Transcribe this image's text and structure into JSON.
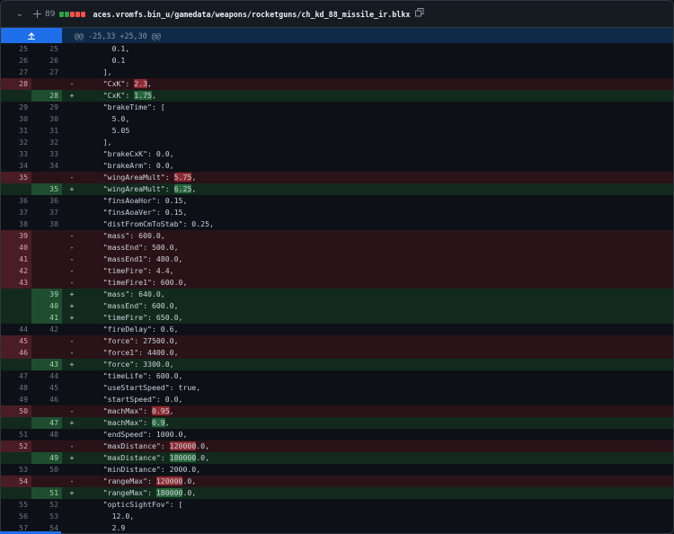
{
  "file_header": {
    "changes_count": "89",
    "diffstat_colors": [
      "#2ea043",
      "#2ea043",
      "#f85149",
      "#f85149",
      "#f85149"
    ],
    "file_path": "aces.vromfs.bin_u/gamedata/weapons/rocketguns/ch_kd_88_missile_ir.blkx"
  },
  "hunk": {
    "header": "@@ -25,33 +25,30 @@"
  },
  "rows": [
    {
      "type": "ctx",
      "old": "25",
      "new": "25",
      "sign": "",
      "pre": "      0.1,",
      "hl": "",
      "post": ""
    },
    {
      "type": "ctx",
      "old": "26",
      "new": "26",
      "sign": "",
      "pre": "      0.1",
      "hl": "",
      "post": ""
    },
    {
      "type": "ctx",
      "old": "27",
      "new": "27",
      "sign": "",
      "pre": "    ],",
      "hl": "",
      "post": ""
    },
    {
      "type": "del",
      "old": "28",
      "new": "",
      "sign": "-",
      "pre": "    \"CxK\": ",
      "hl": "2.3",
      "post": ","
    },
    {
      "type": "add",
      "old": "",
      "new": "28",
      "sign": "+",
      "pre": "    \"CxK\": ",
      "hl": "1.75",
      "post": ","
    },
    {
      "type": "ctx",
      "old": "29",
      "new": "29",
      "sign": "",
      "pre": "    \"brakeTime\": [",
      "hl": "",
      "post": ""
    },
    {
      "type": "ctx",
      "old": "30",
      "new": "30",
      "sign": "",
      "pre": "      5.0,",
      "hl": "",
      "post": ""
    },
    {
      "type": "ctx",
      "old": "31",
      "new": "31",
      "sign": "",
      "pre": "      5.05",
      "hl": "",
      "post": ""
    },
    {
      "type": "ctx",
      "old": "32",
      "new": "32",
      "sign": "",
      "pre": "    ],",
      "hl": "",
      "post": ""
    },
    {
      "type": "ctx",
      "old": "33",
      "new": "33",
      "sign": "",
      "pre": "    \"brakeCxK\": 0.0,",
      "hl": "",
      "post": ""
    },
    {
      "type": "ctx",
      "old": "34",
      "new": "34",
      "sign": "",
      "pre": "    \"brakeArm\": 0.0,",
      "hl": "",
      "post": ""
    },
    {
      "type": "del",
      "old": "35",
      "new": "",
      "sign": "-",
      "pre": "    \"wingAreaMult\": ",
      "hl": "5.75",
      "post": ","
    },
    {
      "type": "add",
      "old": "",
      "new": "35",
      "sign": "+",
      "pre": "    \"wingAreaMult\": ",
      "hl": "6.25",
      "post": ","
    },
    {
      "type": "ctx",
      "old": "36",
      "new": "36",
      "sign": "",
      "pre": "    \"finsAoaHor\": 0.15,",
      "hl": "",
      "post": ""
    },
    {
      "type": "ctx",
      "old": "37",
      "new": "37",
      "sign": "",
      "pre": "    \"finsAoaVer\": 0.15,",
      "hl": "",
      "post": ""
    },
    {
      "type": "ctx",
      "old": "38",
      "new": "38",
      "sign": "",
      "pre": "    \"distFromCmToStab\": 0.25,",
      "hl": "",
      "post": ""
    },
    {
      "type": "del",
      "old": "39",
      "new": "",
      "sign": "-",
      "pre": "    \"mass\": 600.0,",
      "hl": "",
      "post": ""
    },
    {
      "type": "del",
      "old": "40",
      "new": "",
      "sign": "-",
      "pre": "    \"massEnd\": 500.0,",
      "hl": "",
      "post": ""
    },
    {
      "type": "del",
      "old": "41",
      "new": "",
      "sign": "-",
      "pre": "    \"massEnd1\": 480.0,",
      "hl": "",
      "post": ""
    },
    {
      "type": "del",
      "old": "42",
      "new": "",
      "sign": "-",
      "pre": "    \"timeFire\": 4.4,",
      "hl": "",
      "post": ""
    },
    {
      "type": "del",
      "old": "43",
      "new": "",
      "sign": "-",
      "pre": "    \"timeFire1\": 600.0,",
      "hl": "",
      "post": ""
    },
    {
      "type": "add",
      "old": "",
      "new": "39",
      "sign": "+",
      "pre": "    \"mass\": 640.0,",
      "hl": "",
      "post": ""
    },
    {
      "type": "add",
      "old": "",
      "new": "40",
      "sign": "+",
      "pre": "    \"massEnd\": 600.0,",
      "hl": "",
      "post": ""
    },
    {
      "type": "add",
      "old": "",
      "new": "41",
      "sign": "+",
      "pre": "    \"timeFire\": 650.0,",
      "hl": "",
      "post": ""
    },
    {
      "type": "ctx",
      "old": "44",
      "new": "42",
      "sign": "",
      "pre": "    \"fireDelay\": 0.6,",
      "hl": "",
      "post": ""
    },
    {
      "type": "del",
      "old": "45",
      "new": "",
      "sign": "-",
      "pre": "    \"force\": 27500.0,",
      "hl": "",
      "post": ""
    },
    {
      "type": "del",
      "old": "46",
      "new": "",
      "sign": "-",
      "pre": "    \"force1\": 4400.0,",
      "hl": "",
      "post": ""
    },
    {
      "type": "add",
      "old": "",
      "new": "43",
      "sign": "+",
      "pre": "    \"force\": 3300.0,",
      "hl": "",
      "post": ""
    },
    {
      "type": "ctx",
      "old": "47",
      "new": "44",
      "sign": "",
      "pre": "    \"timeLife\": 600.0,",
      "hl": "",
      "post": ""
    },
    {
      "type": "ctx",
      "old": "48",
      "new": "45",
      "sign": "",
      "pre": "    \"useStartSpeed\": true,",
      "hl": "",
      "post": ""
    },
    {
      "type": "ctx",
      "old": "49",
      "new": "46",
      "sign": "",
      "pre": "    \"startSpeed\": 0.0,",
      "hl": "",
      "post": ""
    },
    {
      "type": "del",
      "old": "50",
      "new": "",
      "sign": "-",
      "pre": "    \"machMax\": ",
      "hl": "0.95",
      "post": ","
    },
    {
      "type": "add",
      "old": "",
      "new": "47",
      "sign": "+",
      "pre": "    \"machMax\": ",
      "hl": "0.9",
      "post": ","
    },
    {
      "type": "ctx",
      "old": "51",
      "new": "48",
      "sign": "",
      "pre": "    \"endSpeed\": 1000.0,",
      "hl": "",
      "post": ""
    },
    {
      "type": "del",
      "old": "52",
      "new": "",
      "sign": "-",
      "pre": "    \"maxDistance\": ",
      "hl": "120000",
      "post": ".0,"
    },
    {
      "type": "add",
      "old": "",
      "new": "49",
      "sign": "+",
      "pre": "    \"maxDistance\": ",
      "hl": "180000",
      "post": ".0,"
    },
    {
      "type": "ctx",
      "old": "53",
      "new": "50",
      "sign": "",
      "pre": "    \"minDistance\": 2000.0,",
      "hl": "",
      "post": ""
    },
    {
      "type": "del",
      "old": "54",
      "new": "",
      "sign": "-",
      "pre": "    \"rangeMax\": ",
      "hl": "120000",
      "post": ".0,"
    },
    {
      "type": "add",
      "old": "",
      "new": "51",
      "sign": "+",
      "pre": "    \"rangeMax\": ",
      "hl": "180000",
      "post": ".0,"
    },
    {
      "type": "ctx",
      "old": "55",
      "new": "52",
      "sign": "",
      "pre": "    \"opticSightFov\": [",
      "hl": "",
      "post": ""
    },
    {
      "type": "ctx",
      "old": "56",
      "new": "53",
      "sign": "",
      "pre": "      12.0,",
      "hl": "",
      "post": ""
    },
    {
      "type": "ctx",
      "old": "57",
      "new": "54",
      "sign": "",
      "pre": "      2.9",
      "hl": "",
      "post": ""
    }
  ]
}
